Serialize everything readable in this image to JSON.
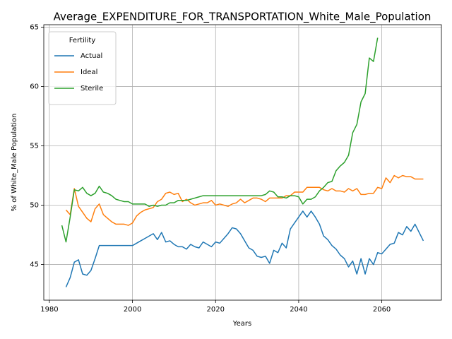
{
  "chart_data": {
    "type": "line",
    "title": "Average_EXPENDITURE_FOR_TRANSPORTATION_White_Male_Population",
    "xlabel": "Years",
    "ylabel": "% of White_Male Population",
    "legend_title": "Fertility",
    "legend": "upper left",
    "grid": true,
    "xlim": [
      1978.65,
      2074.35
    ],
    "xticks": [
      1980,
      2000,
      2020,
      2040,
      2060
    ],
    "ylim": [
      42.0,
      65.2
    ],
    "yticks": [
      45,
      50,
      55,
      60,
      65
    ],
    "series": [
      {
        "name": "Actual",
        "color": "#1f77b4",
        "x": [
          1984,
          1985,
          1986,
          1987,
          1988,
          1989,
          1990,
          1991,
          1992,
          1993,
          1994,
          1995,
          1996,
          1997,
          1998,
          1999,
          2000,
          2001,
          2002,
          2003,
          2004,
          2005,
          2006,
          2007,
          2008,
          2009,
          2010,
          2011,
          2012,
          2013,
          2014,
          2015,
          2016,
          2017,
          2018,
          2019,
          2020,
          2021,
          2022,
          2023,
          2024,
          2025,
          2026,
          2027,
          2028,
          2029,
          2030,
          2031,
          2032,
          2033,
          2034,
          2035,
          2036,
          2037,
          2038,
          2039,
          2040,
          2041,
          2042,
          2043,
          2044,
          2045,
          2046,
          2047,
          2048,
          2049,
          2050,
          2051,
          2052,
          2053,
          2054,
          2055,
          2056,
          2057,
          2058,
          2059,
          2060,
          2061,
          2062,
          2063,
          2064,
          2065,
          2066,
          2067,
          2068,
          2069,
          2070
        ],
        "values": [
          43.1,
          43.9,
          45.2,
          45.4,
          44.2,
          44.1,
          44.5,
          45.5,
          46.6,
          46.6,
          46.6,
          46.6,
          46.6,
          46.6,
          46.6,
          46.6,
          46.6,
          46.8,
          47.0,
          47.2,
          47.4,
          47.6,
          47.1,
          47.7,
          46.9,
          47.0,
          46.7,
          46.5,
          46.5,
          46.3,
          46.7,
          46.5,
          46.4,
          46.9,
          46.7,
          46.5,
          46.9,
          46.8,
          47.2,
          47.6,
          48.1,
          48.0,
          47.6,
          47.0,
          46.4,
          46.2,
          45.7,
          45.6,
          45.7,
          45.1,
          46.2,
          46.0,
          46.8,
          46.4,
          48.0,
          48.5,
          49.0,
          49.5,
          49.0,
          49.5,
          49.0,
          48.4,
          47.4,
          47.1,
          46.6,
          46.3,
          45.8,
          45.5,
          44.8,
          45.3,
          44.2,
          45.5,
          44.2,
          45.5,
          45.0,
          46.0,
          45.9,
          46.3,
          46.7,
          46.8,
          47.7,
          47.5,
          48.2,
          47.8,
          48.4,
          47.7,
          47.0
        ]
      },
      {
        "name": "Ideal",
        "color": "#ff7f0e",
        "x": [
          1984,
          1985,
          1986,
          1987,
          1988,
          1989,
          1990,
          1991,
          1992,
          1993,
          1994,
          1995,
          1996,
          1997,
          1998,
          1999,
          2000,
          2001,
          2002,
          2003,
          2004,
          2005,
          2006,
          2007,
          2008,
          2009,
          2010,
          2011,
          2012,
          2013,
          2014,
          2015,
          2016,
          2017,
          2018,
          2019,
          2020,
          2021,
          2022,
          2023,
          2024,
          2025,
          2026,
          2027,
          2028,
          2029,
          2030,
          2031,
          2032,
          2033,
          2034,
          2035,
          2036,
          2037,
          2038,
          2039,
          2040,
          2041,
          2042,
          2043,
          2044,
          2045,
          2046,
          2047,
          2048,
          2049,
          2050,
          2051,
          2052,
          2053,
          2054,
          2055,
          2056,
          2057,
          2058,
          2059,
          2060,
          2061,
          2062,
          2063,
          2064,
          2065,
          2066,
          2067,
          2068,
          2069,
          2070
        ],
        "values": [
          49.6,
          49.2,
          51.4,
          49.9,
          49.4,
          48.9,
          48.6,
          49.7,
          50.1,
          49.2,
          48.9,
          48.6,
          48.4,
          48.4,
          48.4,
          48.3,
          48.5,
          49.1,
          49.4,
          49.6,
          49.7,
          49.8,
          50.3,
          50.5,
          51.0,
          51.1,
          50.9,
          51.0,
          50.3,
          50.5,
          50.2,
          50.0,
          50.1,
          50.2,
          50.2,
          50.4,
          50.0,
          50.1,
          50.0,
          49.9,
          50.1,
          50.2,
          50.5,
          50.2,
          50.4,
          50.6,
          50.6,
          50.5,
          50.3,
          50.6,
          50.6,
          50.6,
          50.6,
          50.8,
          50.8,
          51.1,
          51.1,
          51.1,
          51.5,
          51.5,
          51.5,
          51.5,
          51.3,
          51.2,
          51.4,
          51.2,
          51.2,
          51.1,
          51.4,
          51.2,
          51.4,
          50.9,
          50.9,
          51.0,
          51.0,
          51.5,
          51.4,
          52.3,
          51.9,
          52.5,
          52.3,
          52.5,
          52.4,
          52.4,
          52.2,
          52.2,
          52.2
        ]
      },
      {
        "name": "Sterile",
        "color": "#2ca02c",
        "x": [
          1983,
          1984,
          1985,
          1986,
          1987,
          1988,
          1989,
          1990,
          1991,
          1992,
          1993,
          1994,
          1995,
          1996,
          1997,
          1998,
          1999,
          2000,
          2001,
          2002,
          2003,
          2004,
          2005,
          2006,
          2007,
          2008,
          2009,
          2010,
          2011,
          2012,
          2013,
          2014,
          2015,
          2016,
          2017,
          2018,
          2019,
          2020,
          2021,
          2022,
          2023,
          2024,
          2025,
          2026,
          2027,
          2028,
          2029,
          2030,
          2031,
          2032,
          2033,
          2034,
          2035,
          2036,
          2037,
          2038,
          2039,
          2040,
          2041,
          2042,
          2043,
          2044,
          2045,
          2046,
          2047,
          2048,
          2049,
          2050,
          2051,
          2052,
          2053,
          2054,
          2055,
          2056,
          2057,
          2058,
          2059
        ],
        "values": [
          48.3,
          46.9,
          49.0,
          51.3,
          51.2,
          51.5,
          51.0,
          50.8,
          51.0,
          51.6,
          51.1,
          51.0,
          50.8,
          50.5,
          50.4,
          50.3,
          50.3,
          50.1,
          50.1,
          50.1,
          50.1,
          49.9,
          50.0,
          49.9,
          50.0,
          50.0,
          50.2,
          50.2,
          50.4,
          50.4,
          50.4,
          50.5,
          50.6,
          50.7,
          50.8,
          50.8,
          50.8,
          50.8,
          50.8,
          50.8,
          50.8,
          50.8,
          50.8,
          50.8,
          50.8,
          50.8,
          50.8,
          50.8,
          50.8,
          50.9,
          51.2,
          51.1,
          50.7,
          50.7,
          50.6,
          50.8,
          50.8,
          50.7,
          50.1,
          50.5,
          50.5,
          50.7,
          51.2,
          51.5,
          51.9,
          52.0,
          52.9,
          53.3,
          53.6,
          54.2,
          56.1,
          56.8,
          58.7,
          59.4,
          62.4,
          62.1,
          64.1
        ]
      }
    ]
  }
}
